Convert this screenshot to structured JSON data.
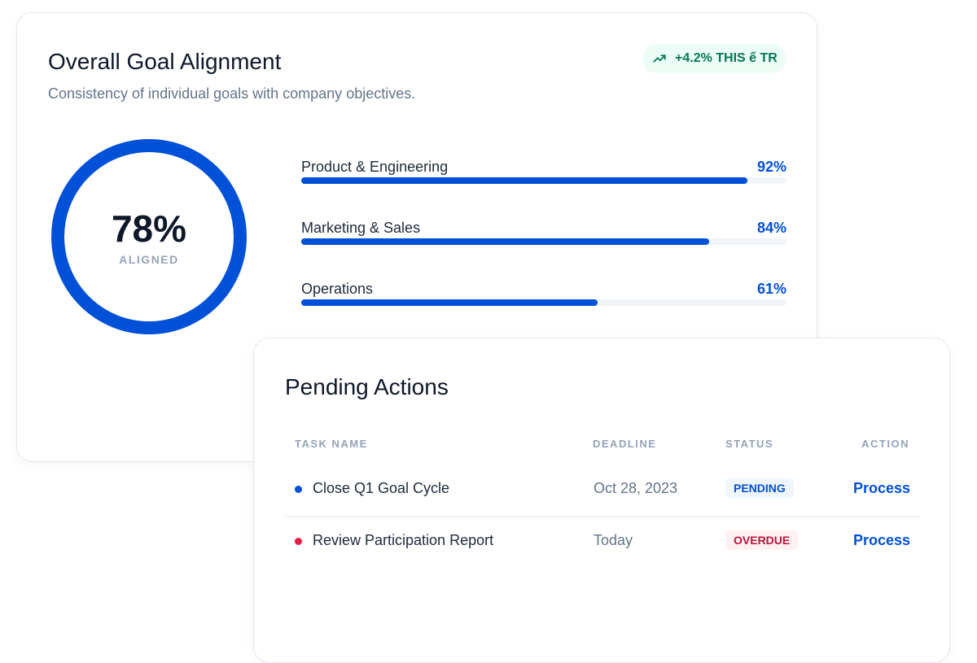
{
  "alignment": {
    "title": "Overall Goal Alignment",
    "subtitle": "Consistency of individual goals with company objectives.",
    "trend_badge": {
      "icon": "trending-up-icon",
      "text": "+4.2% THIS ế TR",
      "color": "#047857"
    },
    "overall": {
      "value": 78,
      "label": "78%",
      "caption": "ALIGNED"
    },
    "departments": [
      {
        "name": "Product & Engineering",
        "label": "92%",
        "value": 92
      },
      {
        "name": "Marketing & Sales",
        "label": "84%",
        "value": 84
      },
      {
        "name": "Operations",
        "label": "61%",
        "value": 61
      }
    ],
    "accent": "#0050d8"
  },
  "pending": {
    "title": "Pending Actions",
    "columns": [
      "TASK NAME",
      "DEADLINE",
      "STATUS",
      "ACTION"
    ],
    "rows": [
      {
        "task": "Close Q1 Goal Cycle",
        "deadline": "Oct 28, 2023",
        "status": "PENDING",
        "action": "Process",
        "dot_color": "#0050d8",
        "status_color": "#0050d8",
        "status_bg": "#eff6ff"
      },
      {
        "task": "Review Participation Report",
        "deadline": "Today",
        "status": "OVERDUE",
        "action": "Process",
        "dot_color": "#e11d48",
        "status_color": "#be123c",
        "status_bg": "#fff1f2"
      }
    ]
  }
}
